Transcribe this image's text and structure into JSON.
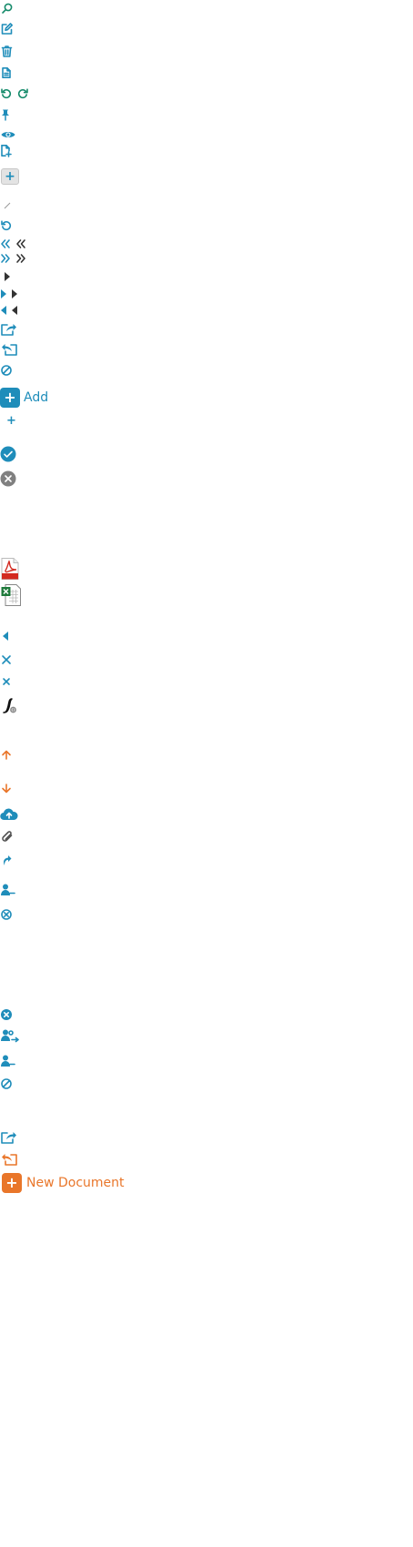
{
  "colors": {
    "primary_blue": "#1f8dba",
    "teal": "#148a6a",
    "orange": "#e9762a",
    "gray": "#777777",
    "dark": "#333333",
    "pdf_red": "#d32a20",
    "excel_green": "#1f7a3b"
  },
  "icons": [
    "search-icon",
    "edit-icon",
    "trash-icon",
    "document-icon",
    "undo-icon",
    "redo-icon",
    "pin-icon",
    "eye-icon",
    "document-add-icon",
    "plus-icon",
    "pencil-icon",
    "refresh-icon",
    "double-chevron-left-icon",
    "double-chevron-right-icon",
    "caret-right-icon",
    "caret-left-icon",
    "share-icon",
    "reply-icon",
    "ban-icon",
    "check-circle-icon",
    "close-circle-icon",
    "pdf-file-icon",
    "excel-file-icon",
    "close-icon",
    "signature-icon",
    "arrow-up-icon",
    "arrow-down-icon",
    "cloud-upload-icon",
    "paperclip-icon",
    "forward-icon",
    "user-remove-icon",
    "user-assign-icon",
    "export-icon"
  ],
  "add_button": {
    "label": "Add",
    "symbol": "+"
  },
  "new_document_button": {
    "label": "New Document",
    "symbol": "+"
  },
  "plus_symbol": "+"
}
